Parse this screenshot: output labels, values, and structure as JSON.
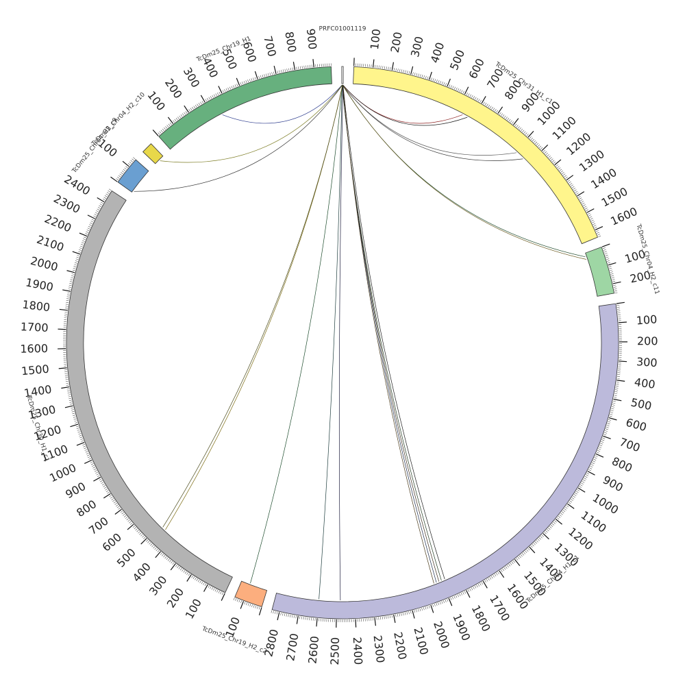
{
  "chart_data": {
    "type": "circos",
    "segments": [
      {
        "id": "PRFC01001119",
        "name": "PRFC01001119",
        "length": 8,
        "color": "#ffffff",
        "ticks": false
      },
      {
        "id": "chr31",
        "name": "TcDm25_Chr31_H1_c1",
        "length": 1640,
        "color": "#fff58c",
        "ticks": true
      },
      {
        "id": "chr04h2c11",
        "name": "TcDm25_Chr04_H2_c11",
        "length": 250,
        "color": "#9ed6a4",
        "ticks": true
      },
      {
        "id": "chr04h1c1",
        "name": "TcDm25_Chr04_H1_c1",
        "length": 2840,
        "color": "#bcbadb",
        "ticks": true
      },
      {
        "id": "chr19h2c2",
        "name": "TcDm25_Chr19_H2_c2",
        "length": 150,
        "color": "#fcae7e",
        "ticks": true
      },
      {
        "id": "chr30",
        "name": "TcDm25_Chr30_H1_c1",
        "length": 2470,
        "color": "#b3b3b3",
        "ticks": true
      },
      {
        "id": "chr04h2c9",
        "name": "TcDm25_Chr04_H2_c9",
        "length": 150,
        "color": "#6a9fd1",
        "ticks": true
      },
      {
        "id": "chr04h2c10",
        "name": "TcDm25_Chr04_H2_c10",
        "length": 60,
        "color": "#e8d84a",
        "ticks": false
      },
      {
        "id": "chr19h1",
        "name": "TcDm25_Chr19_H1",
        "length": 990,
        "color": "#67b07e",
        "ticks": true
      }
    ],
    "links": [
      {
        "from": "PRFC01001119",
        "to": "chr19h1",
        "pos": 350,
        "color": "#2b3a8c"
      },
      {
        "from": "PRFC01001119",
        "to": "chr04h2c10",
        "pos": 30,
        "color": "#7a7a20"
      },
      {
        "from": "PRFC01001119",
        "to": "chr04h2c9",
        "pos": 10,
        "color": "#333333"
      },
      {
        "from": "PRFC01001119",
        "to": "chr31",
        "pos": 640,
        "color": "#8c2020"
      },
      {
        "from": "PRFC01001119",
        "to": "chr31",
        "pos": 670,
        "color": "#1a1a1a"
      },
      {
        "from": "PRFC01001119",
        "to": "chr31",
        "pos": 1010,
        "color": "#555555"
      },
      {
        "from": "PRFC01001119",
        "to": "chr31",
        "pos": 1060,
        "color": "#333333"
      },
      {
        "from": "PRFC01001119",
        "to": "chr04h2c11",
        "pos": 20,
        "color": "#1e4a2a"
      },
      {
        "from": "PRFC01001119",
        "to": "chr04h2c11",
        "pos": 35,
        "color": "#6a5a20"
      },
      {
        "from": "PRFC01001119",
        "to": "chr04h1c1",
        "pos": 1880,
        "color": "#1a1a1a"
      },
      {
        "from": "PRFC01001119",
        "to": "chr04h1c1",
        "pos": 1900,
        "color": "#203a20"
      },
      {
        "from": "PRFC01001119",
        "to": "chr04h1c1",
        "pos": 1915,
        "color": "#3a2a1a"
      },
      {
        "from": "PRFC01001119",
        "to": "chr04h1c1",
        "pos": 1930,
        "color": "#1a2a4a"
      },
      {
        "from": "PRFC01001119",
        "to": "chr04h1c1",
        "pos": 1945,
        "color": "#4a3a1a"
      },
      {
        "from": "PRFC01001119",
        "to": "chr04h1c1",
        "pos": 2480,
        "color": "#1a1a3a"
      },
      {
        "from": "PRFC01001119",
        "to": "chr04h1c1",
        "pos": 2600,
        "color": "#1a3a3a"
      },
      {
        "from": "PRFC01001119",
        "to": "chr19h2c2",
        "pos": 100,
        "color": "#1a4a2a"
      },
      {
        "from": "PRFC01001119",
        "to": "chr30",
        "pos": 460,
        "color": "#7a6a10"
      },
      {
        "from": "PRFC01001119",
        "to": "chr30",
        "pos": 480,
        "color": "#4a4a1a"
      }
    ]
  }
}
